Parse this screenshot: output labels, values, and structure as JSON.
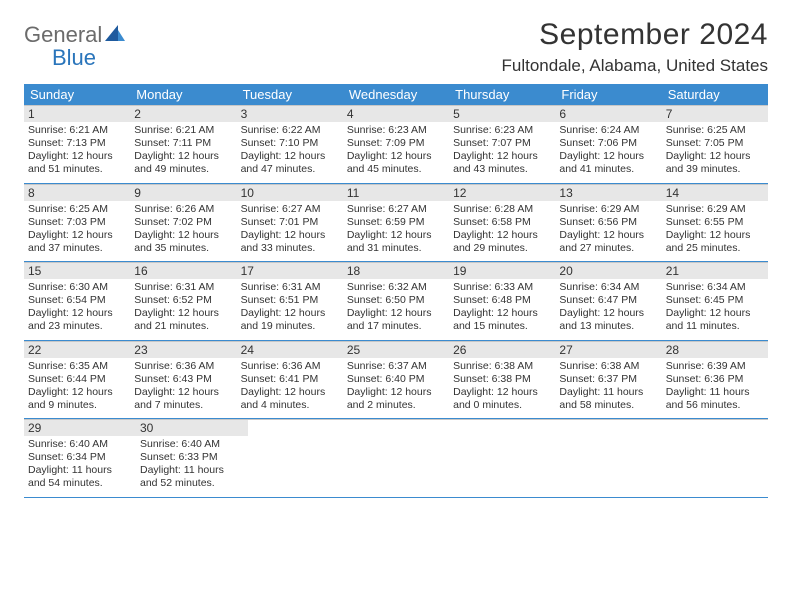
{
  "brand": {
    "word1": "General",
    "word2": "Blue"
  },
  "header": {
    "month_title": "September 2024",
    "location": "Fultondale, Alabama, United States"
  },
  "colors": {
    "header_bar": "#3b8bcf",
    "daynum_bg": "#e7e7e7",
    "row_border": "#c7c7c7",
    "week_divider": "#3b8bcf",
    "logo_gray": "#6b6b6b",
    "logo_blue": "#2a75bb",
    "text": "#333333",
    "background": "#ffffff"
  },
  "dow": [
    "Sunday",
    "Monday",
    "Tuesday",
    "Wednesday",
    "Thursday",
    "Friday",
    "Saturday"
  ],
  "weeks": [
    [
      {
        "n": "1",
        "sunrise": "Sunrise: 6:21 AM",
        "sunset": "Sunset: 7:13 PM",
        "d1": "Daylight: 12 hours",
        "d2": "and 51 minutes."
      },
      {
        "n": "2",
        "sunrise": "Sunrise: 6:21 AM",
        "sunset": "Sunset: 7:11 PM",
        "d1": "Daylight: 12 hours",
        "d2": "and 49 minutes."
      },
      {
        "n": "3",
        "sunrise": "Sunrise: 6:22 AM",
        "sunset": "Sunset: 7:10 PM",
        "d1": "Daylight: 12 hours",
        "d2": "and 47 minutes."
      },
      {
        "n": "4",
        "sunrise": "Sunrise: 6:23 AM",
        "sunset": "Sunset: 7:09 PM",
        "d1": "Daylight: 12 hours",
        "d2": "and 45 minutes."
      },
      {
        "n": "5",
        "sunrise": "Sunrise: 6:23 AM",
        "sunset": "Sunset: 7:07 PM",
        "d1": "Daylight: 12 hours",
        "d2": "and 43 minutes."
      },
      {
        "n": "6",
        "sunrise": "Sunrise: 6:24 AM",
        "sunset": "Sunset: 7:06 PM",
        "d1": "Daylight: 12 hours",
        "d2": "and 41 minutes."
      },
      {
        "n": "7",
        "sunrise": "Sunrise: 6:25 AM",
        "sunset": "Sunset: 7:05 PM",
        "d1": "Daylight: 12 hours",
        "d2": "and 39 minutes."
      }
    ],
    [
      {
        "n": "8",
        "sunrise": "Sunrise: 6:25 AM",
        "sunset": "Sunset: 7:03 PM",
        "d1": "Daylight: 12 hours",
        "d2": "and 37 minutes."
      },
      {
        "n": "9",
        "sunrise": "Sunrise: 6:26 AM",
        "sunset": "Sunset: 7:02 PM",
        "d1": "Daylight: 12 hours",
        "d2": "and 35 minutes."
      },
      {
        "n": "10",
        "sunrise": "Sunrise: 6:27 AM",
        "sunset": "Sunset: 7:01 PM",
        "d1": "Daylight: 12 hours",
        "d2": "and 33 minutes."
      },
      {
        "n": "11",
        "sunrise": "Sunrise: 6:27 AM",
        "sunset": "Sunset: 6:59 PM",
        "d1": "Daylight: 12 hours",
        "d2": "and 31 minutes."
      },
      {
        "n": "12",
        "sunrise": "Sunrise: 6:28 AM",
        "sunset": "Sunset: 6:58 PM",
        "d1": "Daylight: 12 hours",
        "d2": "and 29 minutes."
      },
      {
        "n": "13",
        "sunrise": "Sunrise: 6:29 AM",
        "sunset": "Sunset: 6:56 PM",
        "d1": "Daylight: 12 hours",
        "d2": "and 27 minutes."
      },
      {
        "n": "14",
        "sunrise": "Sunrise: 6:29 AM",
        "sunset": "Sunset: 6:55 PM",
        "d1": "Daylight: 12 hours",
        "d2": "and 25 minutes."
      }
    ],
    [
      {
        "n": "15",
        "sunrise": "Sunrise: 6:30 AM",
        "sunset": "Sunset: 6:54 PM",
        "d1": "Daylight: 12 hours",
        "d2": "and 23 minutes."
      },
      {
        "n": "16",
        "sunrise": "Sunrise: 6:31 AM",
        "sunset": "Sunset: 6:52 PM",
        "d1": "Daylight: 12 hours",
        "d2": "and 21 minutes."
      },
      {
        "n": "17",
        "sunrise": "Sunrise: 6:31 AM",
        "sunset": "Sunset: 6:51 PM",
        "d1": "Daylight: 12 hours",
        "d2": "and 19 minutes."
      },
      {
        "n": "18",
        "sunrise": "Sunrise: 6:32 AM",
        "sunset": "Sunset: 6:50 PM",
        "d1": "Daylight: 12 hours",
        "d2": "and 17 minutes."
      },
      {
        "n": "19",
        "sunrise": "Sunrise: 6:33 AM",
        "sunset": "Sunset: 6:48 PM",
        "d1": "Daylight: 12 hours",
        "d2": "and 15 minutes."
      },
      {
        "n": "20",
        "sunrise": "Sunrise: 6:34 AM",
        "sunset": "Sunset: 6:47 PM",
        "d1": "Daylight: 12 hours",
        "d2": "and 13 minutes."
      },
      {
        "n": "21",
        "sunrise": "Sunrise: 6:34 AM",
        "sunset": "Sunset: 6:45 PM",
        "d1": "Daylight: 12 hours",
        "d2": "and 11 minutes."
      }
    ],
    [
      {
        "n": "22",
        "sunrise": "Sunrise: 6:35 AM",
        "sunset": "Sunset: 6:44 PM",
        "d1": "Daylight: 12 hours",
        "d2": "and 9 minutes."
      },
      {
        "n": "23",
        "sunrise": "Sunrise: 6:36 AM",
        "sunset": "Sunset: 6:43 PM",
        "d1": "Daylight: 12 hours",
        "d2": "and 7 minutes."
      },
      {
        "n": "24",
        "sunrise": "Sunrise: 6:36 AM",
        "sunset": "Sunset: 6:41 PM",
        "d1": "Daylight: 12 hours",
        "d2": "and 4 minutes."
      },
      {
        "n": "25",
        "sunrise": "Sunrise: 6:37 AM",
        "sunset": "Sunset: 6:40 PM",
        "d1": "Daylight: 12 hours",
        "d2": "and 2 minutes."
      },
      {
        "n": "26",
        "sunrise": "Sunrise: 6:38 AM",
        "sunset": "Sunset: 6:38 PM",
        "d1": "Daylight: 12 hours",
        "d2": "and 0 minutes."
      },
      {
        "n": "27",
        "sunrise": "Sunrise: 6:38 AM",
        "sunset": "Sunset: 6:37 PM",
        "d1": "Daylight: 11 hours",
        "d2": "and 58 minutes."
      },
      {
        "n": "28",
        "sunrise": "Sunrise: 6:39 AM",
        "sunset": "Sunset: 6:36 PM",
        "d1": "Daylight: 11 hours",
        "d2": "and 56 minutes."
      }
    ],
    [
      {
        "n": "29",
        "sunrise": "Sunrise: 6:40 AM",
        "sunset": "Sunset: 6:34 PM",
        "d1": "Daylight: 11 hours",
        "d2": "and 54 minutes."
      },
      {
        "n": "30",
        "sunrise": "Sunrise: 6:40 AM",
        "sunset": "Sunset: 6:33 PM",
        "d1": "Daylight: 11 hours",
        "d2": "and 52 minutes."
      },
      null,
      null,
      null,
      null,
      null
    ]
  ]
}
